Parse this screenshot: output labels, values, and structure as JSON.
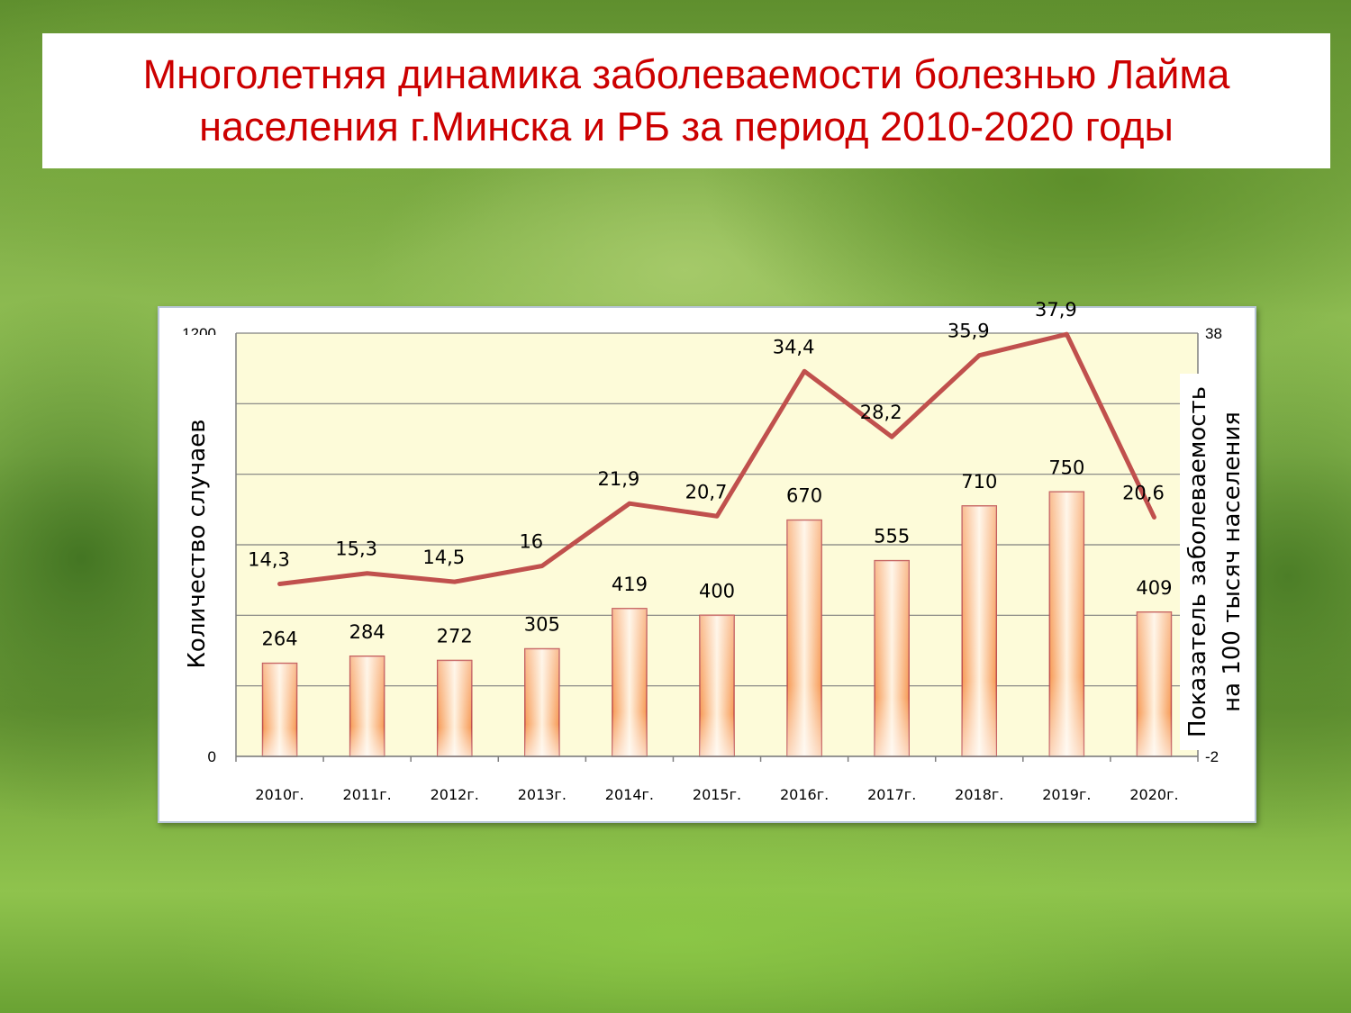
{
  "title": {
    "line1": "Многолетняя динамика заболеваемости болезнью Лайма",
    "line2": "населения г.Минска и РБ за период 2010-2020 годы"
  },
  "colors": {
    "title": "#cc0000",
    "plot_background": "#fdfbd9",
    "line": "#c0504d",
    "bar_edge": "#c0504d",
    "bar_light": "#fff2e0",
    "bar_dark": "#f79a55"
  },
  "chart_data": {
    "type": "bar",
    "categories": [
      "2010г.",
      "2011г.",
      "2012г.",
      "2013г.",
      "2014г.",
      "2015г.",
      "2016г.",
      "2017г.",
      "2018г.",
      "2019г.",
      "2020г."
    ],
    "series": [
      {
        "axis": "left",
        "type": "bar",
        "values": [
          264,
          284,
          272,
          305,
          419,
          400,
          670,
          555,
          710,
          750,
          409
        ]
      },
      {
        "axis": "right",
        "type": "line",
        "values": [
          14.3,
          15.3,
          14.5,
          16,
          21.9,
          20.7,
          34.4,
          28.2,
          35.9,
          37.9,
          20.6
        ]
      }
    ],
    "bar_labels": [
      "264",
      "284",
      "272",
      "305",
      "419",
      "400",
      "670",
      "555",
      "710",
      "750",
      "409"
    ],
    "line_labels": [
      "14,3",
      "15,3",
      "14,5",
      "16",
      "21,9",
      "20,7",
      "34,4",
      "28,2",
      "35,9",
      "37,9",
      "20,6"
    ],
    "ylabel": "Количество случаев",
    "y2label_line1": "Показатель заболеваемость",
    "y2label_line2": "на 100 тысяч населения",
    "ylim": [
      0,
      1200
    ],
    "y2lim": [
      -2,
      38
    ],
    "y_tick_labels": [
      "1200",
      "0"
    ],
    "y2_tick_labels": [
      "38",
      "-2"
    ],
    "grid": true,
    "legend": "none"
  }
}
